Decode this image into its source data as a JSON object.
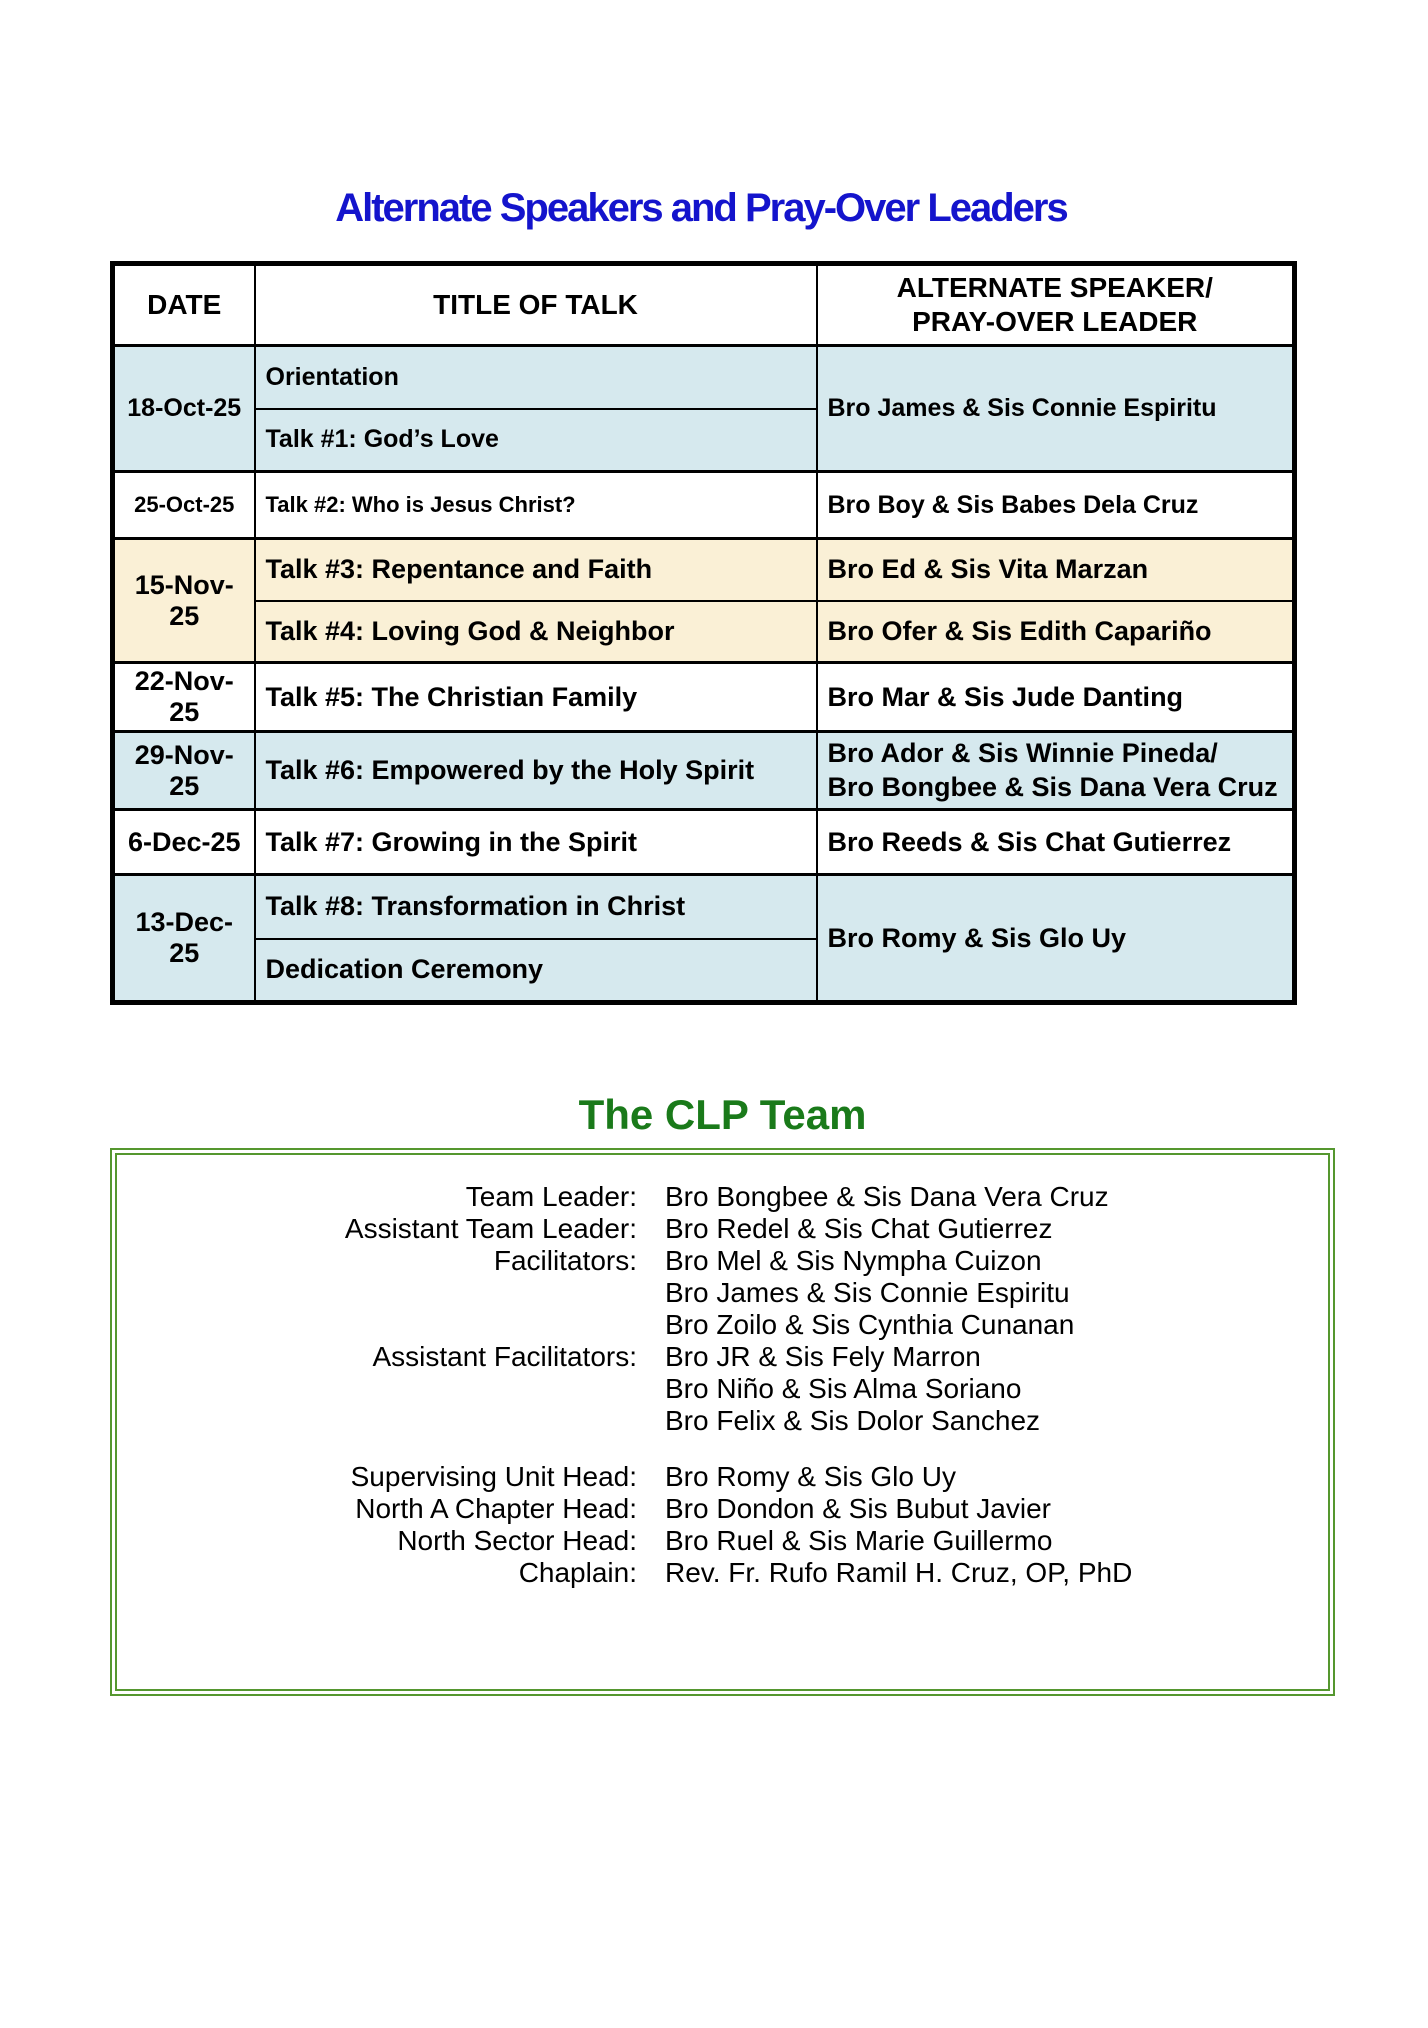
{
  "schedule": {
    "title": "Alternate Speakers and Pray-Over Leaders",
    "headers": {
      "date": "DATE",
      "talk": "TITLE OF TALK",
      "speaker_lines": [
        "ALTERNATE SPEAKER/",
        "PRAY-OVER LEADER"
      ]
    },
    "rows": [
      {
        "date": "18-Oct-25",
        "talks": [
          "Orientation",
          "Talk #1: God’s Love"
        ],
        "speakers": [
          "Bro James & Sis Connie Espiritu"
        ]
      },
      {
        "date": "25-Oct-25",
        "talks": [
          "Talk #2: Who is Jesus Christ?"
        ],
        "speakers": [
          "Bro Boy & Sis Babes Dela Cruz"
        ]
      },
      {
        "date": "15-Nov-25",
        "talks": [
          "Talk #3: Repentance and Faith",
          "Talk #4: Loving God & Neighbor"
        ],
        "speakers": [
          "Bro Ed & Sis Vita Marzan",
          "Bro Ofer & Sis Edith Capariño"
        ]
      },
      {
        "date": "22-Nov-25",
        "talks": [
          "Talk #5: The Christian Family"
        ],
        "speakers": [
          "Bro Mar & Sis Jude Danting"
        ]
      },
      {
        "date": "29-Nov-25",
        "talks": [
          "Talk #6: Empowered by the Holy Spirit"
        ],
        "speakers": [
          "Bro Ador & Sis Winnie Pineda/",
          "Bro Bongbee & Sis Dana Vera Cruz"
        ]
      },
      {
        "date": "6-Dec-25",
        "talks": [
          "Talk #7: Growing in the Spirit"
        ],
        "speakers": [
          "Bro Reeds & Sis Chat Gutierrez"
        ]
      },
      {
        "date": "13-Dec-25",
        "talks": [
          "Talk #8: Transformation in Christ",
          "Dedication Ceremony"
        ],
        "speakers": [
          "Bro Romy & Sis Glo Uy"
        ]
      }
    ]
  },
  "team": {
    "title": "The CLP Team",
    "groups": [
      {
        "label": "Team Leader:",
        "names": [
          "Bro Bongbee & Sis Dana Vera Cruz"
        ]
      },
      {
        "label": "Assistant Team Leader:",
        "names": [
          "Bro Redel & Sis Chat Gutierrez"
        ]
      },
      {
        "label": "Facilitators:",
        "names": [
          "Bro Mel & Sis Nympha Cuizon",
          "Bro James & Sis Connie Espiritu",
          "Bro Zoilo & Sis Cynthia Cunanan"
        ]
      },
      {
        "label": "Assistant Facilitators:",
        "names": [
          "Bro JR & Sis Fely Marron",
          "Bro Niño & Sis Alma Soriano",
          "Bro Felix & Sis Dolor Sanchez"
        ]
      },
      {
        "label": "Supervising Unit Head:",
        "names": [
          "Bro Romy & Sis Glo Uy"
        ]
      },
      {
        "label": "North A Chapter Head:",
        "names": [
          "Bro Dondon & Sis Bubut Javier"
        ]
      },
      {
        "label": "North Sector Head:",
        "names": [
          "Bro Ruel & Sis Marie Guillermo"
        ]
      },
      {
        "label": "Chaplain:",
        "names": [
          "Rev. Fr. Rufo Ramil H. Cruz, OP, PhD"
        ]
      }
    ]
  },
  "colors": {
    "title_blue": "#1414cc",
    "team_title_green": "#1a7a1a",
    "team_box_border_green": "#55972f",
    "row_light_blue": "#d6e9ee",
    "row_cream": "#faf0d6",
    "table_border_black": "#000000"
  }
}
